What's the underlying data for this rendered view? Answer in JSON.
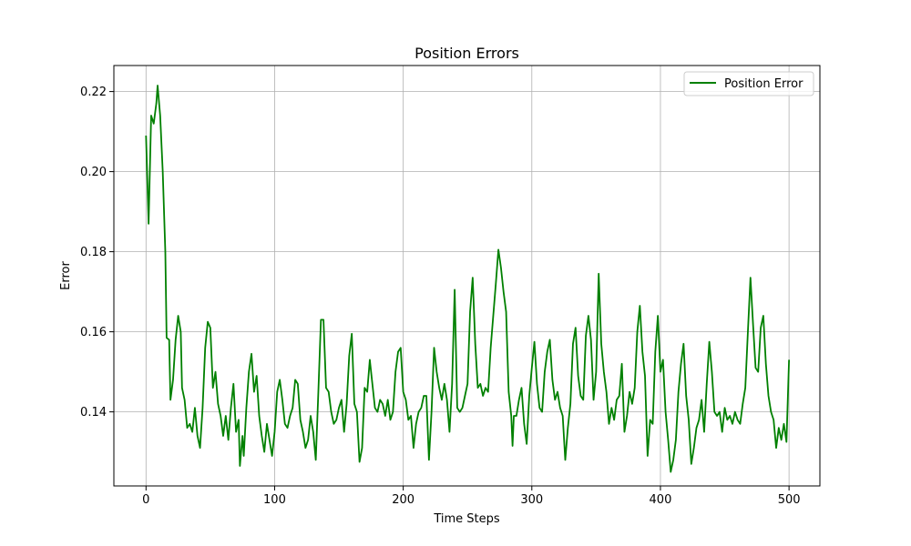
{
  "chart_data": {
    "type": "line",
    "title": "Position Errors",
    "xlabel": "Time Steps",
    "ylabel": "Error",
    "xlim": [
      -25,
      524
    ],
    "ylim": [
      0.1215,
      0.2265
    ],
    "xticks": [
      0,
      100,
      200,
      300,
      400,
      500
    ],
    "xtick_labels": [
      "0",
      "100",
      "200",
      "300",
      "400",
      "500"
    ],
    "yticks": [
      0.14,
      0.16,
      0.18,
      0.2,
      0.22
    ],
    "ytick_labels": [
      "0.14",
      "0.16",
      "0.18",
      "0.20",
      "0.22"
    ],
    "grid": true,
    "legend": {
      "position": "top-right",
      "entries": [
        "Position Error"
      ]
    },
    "series": [
      {
        "name": "Position Error",
        "color": "#008000",
        "points": [
          [
            0,
            0.209
          ],
          [
            2,
            0.187
          ],
          [
            4,
            0.214
          ],
          [
            6,
            0.212
          ],
          [
            8,
            0.217
          ],
          [
            9,
            0.2215
          ],
          [
            11,
            0.214
          ],
          [
            13,
            0.2
          ],
          [
            15,
            0.18
          ],
          [
            16,
            0.1585
          ],
          [
            18,
            0.158
          ],
          [
            19,
            0.143
          ],
          [
            21,
            0.148
          ],
          [
            23,
            0.158
          ],
          [
            25,
            0.164
          ],
          [
            27,
            0.16
          ],
          [
            28,
            0.146
          ],
          [
            30,
            0.143
          ],
          [
            32,
            0.136
          ],
          [
            34,
            0.137
          ],
          [
            36,
            0.135
          ],
          [
            38,
            0.141
          ],
          [
            40,
            0.134
          ],
          [
            42,
            0.131
          ],
          [
            44,
            0.141
          ],
          [
            46,
            0.156
          ],
          [
            48,
            0.1625
          ],
          [
            50,
            0.161
          ],
          [
            52,
            0.146
          ],
          [
            54,
            0.15
          ],
          [
            56,
            0.142
          ],
          [
            58,
            0.139
          ],
          [
            60,
            0.134
          ],
          [
            62,
            0.139
          ],
          [
            64,
            0.133
          ],
          [
            66,
            0.141
          ],
          [
            68,
            0.147
          ],
          [
            70,
            0.135
          ],
          [
            72,
            0.138
          ],
          [
            73,
            0.1265
          ],
          [
            75,
            0.134
          ],
          [
            76,
            0.129
          ],
          [
            78,
            0.141
          ],
          [
            80,
            0.15
          ],
          [
            82,
            0.1545
          ],
          [
            84,
            0.145
          ],
          [
            86,
            0.149
          ],
          [
            88,
            0.139
          ],
          [
            90,
            0.134
          ],
          [
            92,
            0.13
          ],
          [
            94,
            0.137
          ],
          [
            96,
            0.133
          ],
          [
            98,
            0.129
          ],
          [
            100,
            0.135
          ],
          [
            102,
            0.145
          ],
          [
            104,
            0.148
          ],
          [
            106,
            0.143
          ],
          [
            108,
            0.137
          ],
          [
            110,
            0.136
          ],
          [
            112,
            0.139
          ],
          [
            114,
            0.141
          ],
          [
            116,
            0.148
          ],
          [
            118,
            0.147
          ],
          [
            120,
            0.138
          ],
          [
            122,
            0.135
          ],
          [
            124,
            0.131
          ],
          [
            126,
            0.133
          ],
          [
            128,
            0.139
          ],
          [
            130,
            0.135
          ],
          [
            132,
            0.128
          ],
          [
            134,
            0.145
          ],
          [
            136,
            0.163
          ],
          [
            138,
            0.163
          ],
          [
            140,
            0.146
          ],
          [
            142,
            0.145
          ],
          [
            144,
            0.14
          ],
          [
            146,
            0.137
          ],
          [
            148,
            0.138
          ],
          [
            150,
            0.141
          ],
          [
            152,
            0.143
          ],
          [
            154,
            0.135
          ],
          [
            156,
            0.142
          ],
          [
            158,
            0.154
          ],
          [
            160,
            0.1595
          ],
          [
            162,
            0.142
          ],
          [
            164,
            0.14
          ],
          [
            166,
            0.1275
          ],
          [
            168,
            0.131
          ],
          [
            170,
            0.146
          ],
          [
            172,
            0.145
          ],
          [
            174,
            0.153
          ],
          [
            176,
            0.147
          ],
          [
            178,
            0.141
          ],
          [
            180,
            0.14
          ],
          [
            182,
            0.143
          ],
          [
            184,
            0.142
          ],
          [
            186,
            0.139
          ],
          [
            188,
            0.143
          ],
          [
            190,
            0.138
          ],
          [
            192,
            0.14
          ],
          [
            194,
            0.15
          ],
          [
            196,
            0.155
          ],
          [
            198,
            0.156
          ],
          [
            200,
            0.145
          ],
          [
            202,
            0.143
          ],
          [
            204,
            0.138
          ],
          [
            206,
            0.139
          ],
          [
            208,
            0.131
          ],
          [
            210,
            0.137
          ],
          [
            212,
            0.14
          ],
          [
            214,
            0.141
          ],
          [
            216,
            0.144
          ],
          [
            218,
            0.144
          ],
          [
            220,
            0.128
          ],
          [
            222,
            0.14
          ],
          [
            224,
            0.156
          ],
          [
            226,
            0.15
          ],
          [
            228,
            0.146
          ],
          [
            230,
            0.143
          ],
          [
            232,
            0.147
          ],
          [
            234,
            0.143
          ],
          [
            236,
            0.135
          ],
          [
            238,
            0.147
          ],
          [
            240,
            0.1705
          ],
          [
            242,
            0.141
          ],
          [
            244,
            0.14
          ],
          [
            246,
            0.141
          ],
          [
            248,
            0.144
          ],
          [
            250,
            0.147
          ],
          [
            252,
            0.165
          ],
          [
            254,
            0.1735
          ],
          [
            256,
            0.157
          ],
          [
            258,
            0.146
          ],
          [
            260,
            0.147
          ],
          [
            262,
            0.144
          ],
          [
            264,
            0.146
          ],
          [
            266,
            0.145
          ],
          [
            268,
            0.156
          ],
          [
            270,
            0.164
          ],
          [
            272,
            0.172
          ],
          [
            274,
            0.1805
          ],
          [
            276,
            0.176
          ],
          [
            278,
            0.17
          ],
          [
            280,
            0.165
          ],
          [
            282,
            0.145
          ],
          [
            284,
            0.139
          ],
          [
            285,
            0.1315
          ],
          [
            286,
            0.139
          ],
          [
            288,
            0.139
          ],
          [
            290,
            0.143
          ],
          [
            292,
            0.146
          ],
          [
            294,
            0.137
          ],
          [
            296,
            0.132
          ],
          [
            298,
            0.144
          ],
          [
            300,
            0.151
          ],
          [
            302,
            0.1575
          ],
          [
            304,
            0.147
          ],
          [
            306,
            0.141
          ],
          [
            308,
            0.14
          ],
          [
            310,
            0.15
          ],
          [
            312,
            0.155
          ],
          [
            314,
            0.158
          ],
          [
            316,
            0.148
          ],
          [
            318,
            0.143
          ],
          [
            320,
            0.145
          ],
          [
            322,
            0.141
          ],
          [
            324,
            0.139
          ],
          [
            326,
            0.128
          ],
          [
            328,
            0.136
          ],
          [
            330,
            0.142
          ],
          [
            332,
            0.157
          ],
          [
            334,
            0.161
          ],
          [
            336,
            0.149
          ],
          [
            338,
            0.144
          ],
          [
            340,
            0.143
          ],
          [
            342,
            0.159
          ],
          [
            344,
            0.164
          ],
          [
            346,
            0.158
          ],
          [
            348,
            0.143
          ],
          [
            350,
            0.15
          ],
          [
            352,
            0.1745
          ],
          [
            354,
            0.157
          ],
          [
            356,
            0.15
          ],
          [
            358,
            0.145
          ],
          [
            360,
            0.137
          ],
          [
            362,
            0.141
          ],
          [
            364,
            0.138
          ],
          [
            366,
            0.143
          ],
          [
            368,
            0.144
          ],
          [
            370,
            0.152
          ],
          [
            372,
            0.135
          ],
          [
            374,
            0.139
          ],
          [
            376,
            0.145
          ],
          [
            378,
            0.142
          ],
          [
            380,
            0.146
          ],
          [
            382,
            0.16
          ],
          [
            384,
            0.1665
          ],
          [
            386,
            0.155
          ],
          [
            388,
            0.149
          ],
          [
            390,
            0.129
          ],
          [
            392,
            0.138
          ],
          [
            394,
            0.137
          ],
          [
            396,
            0.155
          ],
          [
            398,
            0.164
          ],
          [
            400,
            0.15
          ],
          [
            402,
            0.153
          ],
          [
            404,
            0.14
          ],
          [
            406,
            0.133
          ],
          [
            408,
            0.125
          ],
          [
            410,
            0.128
          ],
          [
            412,
            0.133
          ],
          [
            414,
            0.145
          ],
          [
            416,
            0.152
          ],
          [
            418,
            0.157
          ],
          [
            420,
            0.144
          ],
          [
            422,
            0.138
          ],
          [
            424,
            0.127
          ],
          [
            426,
            0.131
          ],
          [
            428,
            0.136
          ],
          [
            430,
            0.138
          ],
          [
            432,
            0.143
          ],
          [
            434,
            0.135
          ],
          [
            436,
            0.147
          ],
          [
            438,
            0.1575
          ],
          [
            440,
            0.15
          ],
          [
            442,
            0.14
          ],
          [
            444,
            0.139
          ],
          [
            446,
            0.14
          ],
          [
            448,
            0.135
          ],
          [
            450,
            0.141
          ],
          [
            452,
            0.138
          ],
          [
            454,
            0.139
          ],
          [
            456,
            0.137
          ],
          [
            458,
            0.14
          ],
          [
            460,
            0.138
          ],
          [
            462,
            0.137
          ],
          [
            464,
            0.142
          ],
          [
            466,
            0.146
          ],
          [
            468,
            0.16
          ],
          [
            470,
            0.1735
          ],
          [
            472,
            0.162
          ],
          [
            474,
            0.151
          ],
          [
            476,
            0.15
          ],
          [
            478,
            0.161
          ],
          [
            480,
            0.164
          ],
          [
            482,
            0.152
          ],
          [
            484,
            0.144
          ],
          [
            486,
            0.14
          ],
          [
            488,
            0.138
          ],
          [
            490,
            0.131
          ],
          [
            492,
            0.136
          ],
          [
            494,
            0.133
          ],
          [
            496,
            0.137
          ],
          [
            498,
            0.1325
          ],
          [
            500,
            0.153
          ]
        ]
      }
    ]
  }
}
